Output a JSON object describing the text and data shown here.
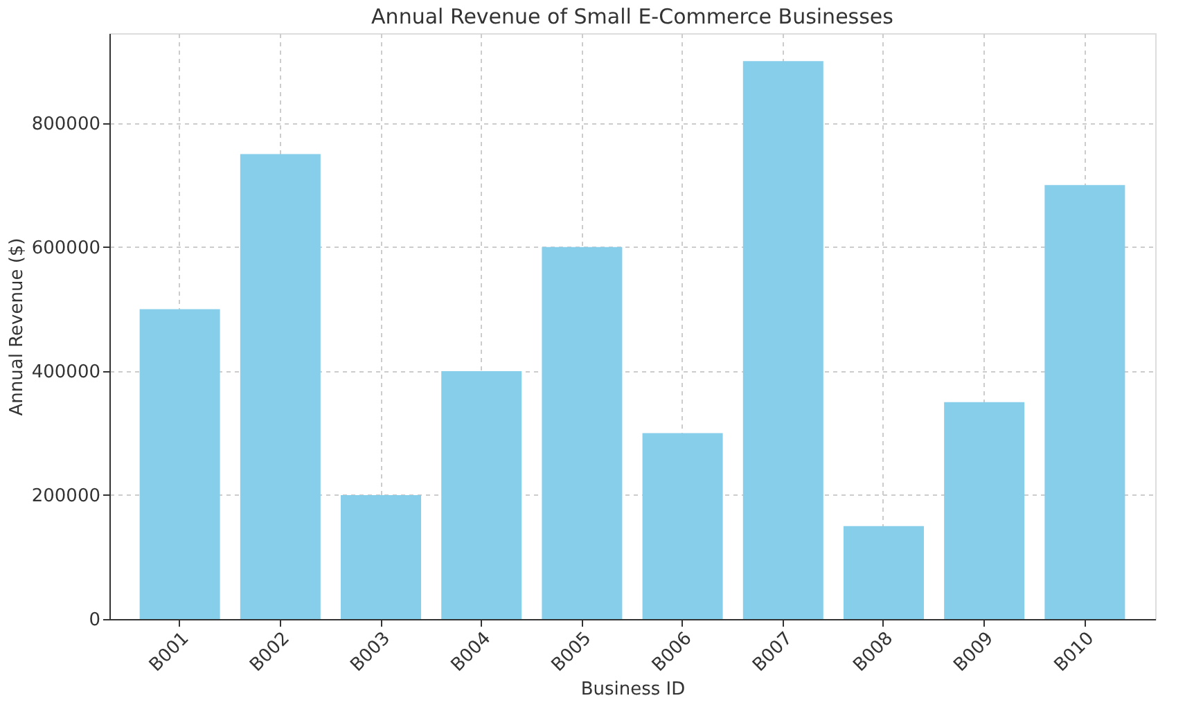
{
  "chart_data": {
    "type": "bar",
    "title": "Annual Revenue of Small E-Commerce Businesses",
    "xlabel": "Business ID",
    "ylabel": "Annual Revenue ($)",
    "categories": [
      "B001",
      "B002",
      "B003",
      "B004",
      "B005",
      "B006",
      "B007",
      "B008",
      "B009",
      "B010"
    ],
    "values": [
      500000,
      750000,
      200000,
      400000,
      600000,
      300000,
      900000,
      150000,
      350000,
      700000
    ],
    "color": "#87ceeb",
    "ylim": [
      0,
      945000
    ],
    "yticks": [
      0,
      200000,
      400000,
      600000,
      800000
    ],
    "grid": true
  }
}
